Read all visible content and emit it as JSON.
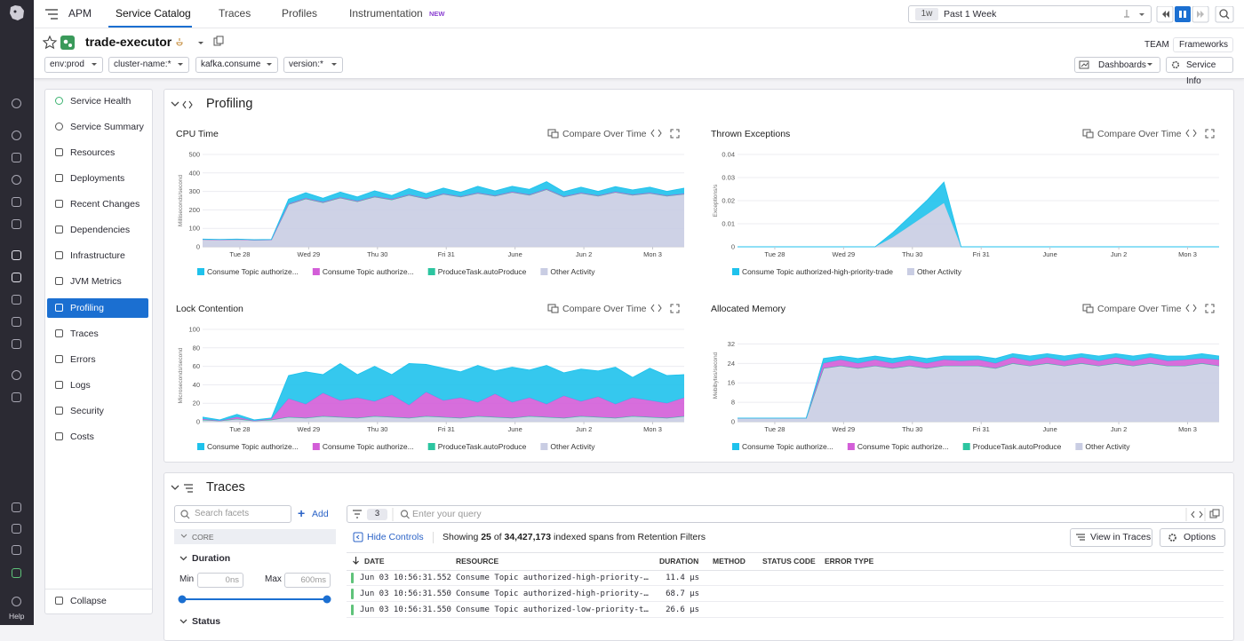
{
  "nav": {
    "product": "APM",
    "tabs": [
      "Service Catalog",
      "Traces",
      "Profiles",
      "Instrumentation"
    ],
    "badge": "NEW"
  },
  "time": {
    "short": "1w",
    "label": "Past 1 Week"
  },
  "sidebar": {
    "help": "Help"
  },
  "service": {
    "name": "trade-executor",
    "filters": [
      "env:prod",
      "cluster-name:*",
      "kafka.consume",
      "version:*"
    ],
    "team": "TEAM",
    "frameworks": "Frameworks",
    "dashboards": "Dashboards",
    "info": "Service Info"
  },
  "menu": {
    "items": [
      "Service Health",
      "Service Summary",
      "Resources",
      "Deployments",
      "Recent Changes",
      "Dependencies",
      "Infrastructure",
      "JVM Metrics",
      "Profiling",
      "Traces",
      "Errors",
      "Logs",
      "Security",
      "Costs"
    ],
    "collapse": "Collapse"
  },
  "profiling": {
    "title": "Profiling",
    "compare": "Compare Over Time",
    "charts": [
      {
        "type": "area",
        "title": "CPU Time",
        "y_label": "Milliseconds/second",
        "x": [
          0,
          6,
          12,
          18,
          24,
          30,
          36,
          42,
          48,
          54,
          60,
          66,
          72,
          78,
          84,
          90,
          96,
          102,
          108,
          114,
          120,
          126,
          132,
          138,
          144,
          150,
          156,
          162,
          168
        ],
        "xlim": [
          0,
          168
        ],
        "xticks": [
          {
            "value": 13,
            "label": "Tue 28"
          },
          {
            "value": 37,
            "label": "Wed 29"
          },
          {
            "value": 61,
            "label": "Thu 30"
          },
          {
            "value": 85,
            "label": "Fri 31"
          },
          {
            "value": 109,
            "label": "June"
          },
          {
            "value": 133,
            "label": "Jun 2"
          },
          {
            "value": 157,
            "label": "Mon 3"
          }
        ],
        "ylim": [
          0,
          500
        ],
        "yticks": [
          0,
          100,
          200,
          300,
          400,
          500
        ],
        "series": [
          {
            "name": "Consume Topic authorize...",
            "color": "#1fc2ec",
            "values": [
              2,
              2,
              2,
              2,
              2,
              25,
              30,
              20,
              28,
              22,
              30,
              20,
              32,
              25,
              30,
              22,
              35,
              25,
              30,
              28,
              40,
              25,
              30,
              22,
              28,
              25,
              30,
              22,
              30
            ]
          },
          {
            "name": "Consume Topic authorize...",
            "color": "#d35ed8",
            "values": [
              0,
              0,
              0,
              0,
              0,
              3,
              3,
              3,
              3,
              3,
              3,
              3,
              3,
              3,
              3,
              3,
              3,
              3,
              3,
              3,
              3,
              3,
              3,
              3,
              3,
              3,
              3,
              3,
              3
            ]
          },
          {
            "name": "ProduceTask.autoProduce",
            "color": "#2cc5a0",
            "values": [
              0,
              0,
              0,
              0,
              0,
              0,
              0,
              0,
              0,
              0,
              0,
              0,
              0,
              0,
              0,
              0,
              0,
              0,
              0,
              0,
              0,
              0,
              0,
              0,
              0,
              0,
              0,
              0,
              0
            ]
          },
          {
            "name": "Other Activity",
            "color": "#c9cde3",
            "values": [
              40,
              38,
              40,
              37,
              38,
              230,
              260,
              240,
              265,
              245,
              270,
              255,
              280,
              260,
              285,
              270,
              290,
              275,
              295,
              280,
              310,
              270,
              290,
              275,
              295,
              280,
              290,
              275,
              285
            ]
          }
        ]
      },
      {
        "type": "area",
        "title": "Thrown Exceptions",
        "y_label": "Exceptions/s",
        "x": [
          0,
          6,
          12,
          18,
          24,
          30,
          36,
          42,
          48,
          54,
          60,
          66,
          72,
          78,
          84,
          90,
          96,
          102,
          108,
          114,
          120,
          126,
          132,
          138,
          144,
          150,
          156,
          162,
          168
        ],
        "xlim": [
          0,
          168
        ],
        "xticks": [
          {
            "value": 13,
            "label": "Tue 28"
          },
          {
            "value": 37,
            "label": "Wed 29"
          },
          {
            "value": 61,
            "label": "Thu 30"
          },
          {
            "value": 85,
            "label": "Fri 31"
          },
          {
            "value": 109,
            "label": "June"
          },
          {
            "value": 133,
            "label": "Jun 2"
          },
          {
            "value": 157,
            "label": "Mon 3"
          }
        ],
        "ylim": [
          0,
          0.04
        ],
        "yticks": [
          0,
          0.01,
          0.02,
          0.03,
          0.04
        ],
        "series": [
          {
            "name": "Consume Topic authorized-high-priority-trade",
            "color": "#1fc2ec",
            "values": [
              0,
              0,
              0,
              0,
              0,
              0,
              0,
              0,
              0,
              0.002,
              0.004,
              0.006,
              0.009,
              0,
              0,
              0,
              0,
              0,
              0,
              0,
              0,
              0,
              0,
              0,
              0,
              0,
              0,
              0,
              0
            ]
          },
          {
            "name": "Other Activity",
            "color": "#c9cde3",
            "values": [
              0,
              0,
              0,
              0,
              0,
              0,
              0,
              0,
              0,
              0.004,
              0.009,
              0.014,
              0.019,
              0,
              0,
              0,
              0,
              0,
              0,
              0,
              0,
              0,
              0,
              0,
              0,
              0,
              0,
              0,
              0
            ]
          }
        ]
      },
      {
        "type": "area",
        "title": "Lock Contention",
        "y_label": "Microseconds/second",
        "x": [
          0,
          6,
          12,
          18,
          24,
          30,
          36,
          42,
          48,
          54,
          60,
          66,
          72,
          78,
          84,
          90,
          96,
          102,
          108,
          114,
          120,
          126,
          132,
          138,
          144,
          150,
          156,
          162,
          168
        ],
        "xlim": [
          0,
          168
        ],
        "xticks": [
          {
            "value": 13,
            "label": "Tue 28"
          },
          {
            "value": 37,
            "label": "Wed 29"
          },
          {
            "value": 61,
            "label": "Thu 30"
          },
          {
            "value": 85,
            "label": "Fri 31"
          },
          {
            "value": 109,
            "label": "June"
          },
          {
            "value": 133,
            "label": "Jun 2"
          },
          {
            "value": 157,
            "label": "Mon 3"
          }
        ],
        "ylim": [
          0,
          100
        ],
        "yticks": [
          0,
          20,
          40,
          60,
          80,
          100
        ],
        "series": [
          {
            "name": "Consume Topic authorize...",
            "color": "#1fc2ec",
            "values": [
              2,
              1,
              3,
              1,
              1,
              25,
              35,
              20,
              40,
              25,
              38,
              22,
              45,
              30,
              35,
              28,
              40,
              25,
              38,
              30,
              42,
              25,
              35,
              28,
              40,
              22,
              35,
              30,
              25
            ]
          },
          {
            "name": "Consume Topic authorize...",
            "color": "#d35ed8",
            "values": [
              1,
              0,
              2,
              0,
              1,
              20,
              15,
              25,
              18,
              22,
              16,
              24,
              14,
              26,
              18,
              22,
              15,
              25,
              17,
              20,
              14,
              24,
              16,
              22,
              15,
              20,
              18,
              16,
              20
            ]
          },
          {
            "name": "ProduceTask.autoProduce",
            "color": "#2cc5a0",
            "values": [
              0,
              0,
              0,
              0,
              0,
              0,
              0,
              0,
              0,
              0,
              0,
              0,
              0,
              0,
              0,
              0,
              0,
              0,
              0,
              0,
              0,
              0,
              0,
              0,
              0,
              0,
              0,
              0,
              0
            ]
          },
          {
            "name": "Other Activity",
            "color": "#c9cde3",
            "values": [
              2,
              1,
              3,
              1,
              2,
              5,
              4,
              6,
              5,
              4,
              6,
              5,
              4,
              6,
              5,
              4,
              6,
              5,
              4,
              6,
              5,
              4,
              6,
              5,
              4,
              6,
              5,
              4,
              6
            ]
          }
        ]
      },
      {
        "type": "area",
        "title": "Allocated Memory",
        "y_label": "Mebibytes/second",
        "x": [
          0,
          6,
          12,
          18,
          24,
          30,
          36,
          42,
          48,
          54,
          60,
          66,
          72,
          78,
          84,
          90,
          96,
          102,
          108,
          114,
          120,
          126,
          132,
          138,
          144,
          150,
          156,
          162,
          168
        ],
        "xlim": [
          0,
          168
        ],
        "xticks": [
          {
            "value": 13,
            "label": "Tue 28"
          },
          {
            "value": 37,
            "label": "Wed 29"
          },
          {
            "value": 61,
            "label": "Thu 30"
          },
          {
            "value": 85,
            "label": "Fri 31"
          },
          {
            "value": 109,
            "label": "June"
          },
          {
            "value": 133,
            "label": "Jun 2"
          },
          {
            "value": 157,
            "label": "Mon 3"
          }
        ],
        "ylim": [
          0,
          38
        ],
        "yticks": [
          0,
          8,
          16,
          24,
          32
        ],
        "series": [
          {
            "name": "Consume Topic authorize...",
            "color": "#1fc2ec",
            "values": [
              0,
              0,
              0,
              0,
              0,
              2,
              1.5,
              2,
              1.5,
              2,
              1.5,
              2,
              1.5,
              2,
              1.5,
              2,
              1.5,
              2,
              1.5,
              2,
              1.5,
              2,
              1.5,
              2,
              1.5,
              2,
              1.5,
              2,
              1.5
            ]
          },
          {
            "name": "Consume Topic authorize...",
            "color": "#d35ed8",
            "values": [
              0,
              0,
              0,
              0,
              0,
              2,
              2.5,
              2,
              2.5,
              2,
              2.5,
              2,
              2.5,
              2,
              2.5,
              2,
              2.5,
              2,
              2.5,
              2,
              2.5,
              2,
              2.5,
              2,
              2.5,
              2,
              2.5,
              2,
              2.5
            ]
          },
          {
            "name": "ProduceTask.autoProduce",
            "color": "#2cc5a0",
            "values": [
              0,
              0,
              0,
              0,
              0,
              0,
              0,
              0,
              0,
              0,
              0,
              0,
              0,
              0,
              0,
              0,
              0,
              0,
              0,
              0,
              0,
              0,
              0,
              0,
              0,
              0,
              0,
              0,
              0
            ]
          },
          {
            "name": "Other Activity",
            "color": "#c9cde3",
            "values": [
              1.5,
              1.5,
              1.5,
              1.5,
              1.5,
              22,
              23,
              22,
              23,
              22,
              23,
              22,
              23,
              23,
              23,
              22,
              24,
              23,
              24,
              23,
              24,
              23,
              24,
              23,
              24,
              23,
              23,
              24,
              23
            ]
          }
        ]
      }
    ]
  },
  "traces": {
    "title": "Traces",
    "search_placeholder": "Search facets",
    "add": "Add",
    "core": "CORE",
    "duration": "Duration",
    "min": "Min",
    "min_placeholder": "0ns",
    "max": "Max",
    "max_placeholder": "600ms",
    "status": "Status",
    "filter_count": 3,
    "query_placeholder": "Enter your query",
    "hide_controls": "Hide Controls",
    "showing": [
      "Showing",
      "25",
      "of",
      "34,427,173",
      "indexed spans from Retention Filters"
    ],
    "view": "View in Traces",
    "options": "Options",
    "columns": [
      "DATE",
      "RESOURCE",
      "DURATION",
      "METHOD",
      "STATUS CODE",
      "ERROR TYPE"
    ],
    "rows": [
      [
        "Jun 03 10:56:31.552",
        "Consume Topic authorized-high-priority-…",
        "11.4 μs"
      ],
      [
        "Jun 03 10:56:31.550",
        "Consume Topic authorized-high-priority-…",
        "68.7 μs"
      ],
      [
        "Jun 03 10:56:31.550",
        "Consume Topic authorized-low-priority-t…",
        "26.6 μs"
      ]
    ]
  }
}
